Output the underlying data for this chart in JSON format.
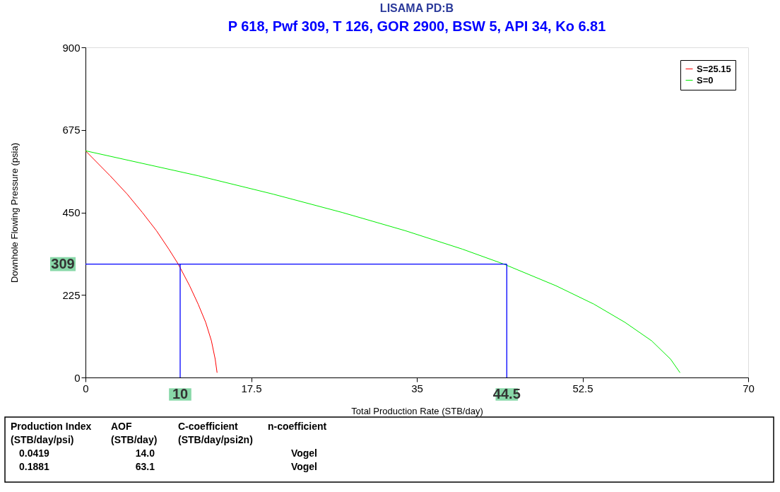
{
  "chart_data": {
    "type": "line",
    "title": "LISAMA PD:B",
    "subtitle": "P 618, Pwf 309, T 126, GOR 2900, BSW 5, API 34, Ko 6.81",
    "xlabel": "Total Production Rate (STB/day)",
    "ylabel": "Downhole Flowing Pressure (psia)",
    "xlim": [
      0,
      70
    ],
    "xticks": [
      0,
      17.5,
      35,
      52.5,
      70
    ],
    "ylim": [
      0,
      900
    ],
    "yticks": [
      0,
      225,
      450,
      675,
      900
    ],
    "grid": false,
    "legend": "top right",
    "marker": "none",
    "line_style": "solid",
    "series": [
      {
        "name": "S=25.15",
        "color": "#ff0000",
        "x": [
          0,
          2.6,
          4.4,
          6.0,
          7.5,
          8.8,
          9.8,
          11.0,
          11.9,
          12.7,
          13.3,
          13.7,
          13.9
        ],
        "values": [
          618,
          550,
          500,
          450,
          400,
          350,
          309,
          250,
          200,
          150,
          100,
          50,
          13
        ]
      },
      {
        "name": "S=0",
        "color": "#00ee00",
        "x": [
          0,
          11.9,
          19.8,
          27.1,
          33.8,
          39.8,
          44.2,
          49.7,
          53.7,
          57.0,
          59.8,
          61.8,
          62.8
        ],
        "values": [
          618,
          550,
          500,
          450,
          400,
          350,
          309,
          250,
          200,
          150,
          100,
          50,
          13
        ]
      }
    ],
    "ref_lines": [
      {
        "axis": "y",
        "value": 309,
        "label": "309",
        "color": "#0000ff"
      },
      {
        "axis": "x",
        "value": 10,
        "label": "10",
        "color": "#0000ff"
      },
      {
        "axis": "x",
        "value": 44.5,
        "label": "44.5",
        "color": "#0000ff"
      }
    ],
    "annotations": [
      "Production Index",
      "AOF",
      "C-coefficient",
      "n-coefficient",
      "(STB/day/psi)",
      "(STB/day)",
      "(STB/day/psi2n)",
      "0.0419",
      "14.0",
      "Vogel",
      "0.1881",
      "63.1",
      "Vogel"
    ]
  }
}
